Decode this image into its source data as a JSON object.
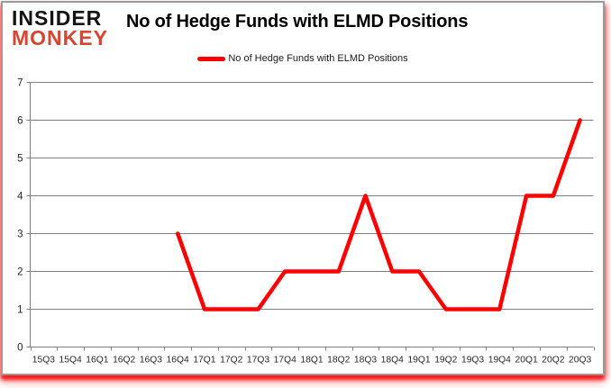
{
  "logo": {
    "line1": "INSIDER",
    "line2": "MONKEY",
    "line1_color": "#141414",
    "line2_color": "#d6452f"
  },
  "header": {
    "title": "No of Hedge Funds with ELMD Positions"
  },
  "legend": {
    "label": "No of Hedge Funds with ELMD Positions",
    "swatch_color": "#ff0000"
  },
  "chart_data": {
    "type": "line",
    "title": "No of Hedge Funds with ELMD Positions",
    "categories": [
      "15Q3",
      "15Q4",
      "16Q1",
      "16Q2",
      "16Q3",
      "16Q4",
      "17Q1",
      "17Q2",
      "17Q3",
      "17Q4",
      "18Q1",
      "18Q2",
      "18Q3",
      "18Q4",
      "19Q1",
      "19Q2",
      "19Q3",
      "19Q4",
      "20Q1",
      "20Q2",
      "20Q3"
    ],
    "series": [
      {
        "name": "No of Hedge Funds with ELMD Positions",
        "color": "#ff0000",
        "values": [
          null,
          null,
          null,
          null,
          null,
          3,
          1,
          1,
          1,
          2,
          2,
          2,
          4,
          2,
          2,
          1,
          1,
          1,
          4,
          4,
          6
        ]
      }
    ],
    "xlabel": "",
    "ylabel": "",
    "ylim": [
      0,
      7
    ],
    "yticks": [
      0,
      1,
      2,
      3,
      4,
      5,
      6,
      7
    ],
    "grid": true,
    "gridline_color": "#808080",
    "axis_color": "#808080",
    "tick_label_color": "#262626",
    "legend_position": "top"
  }
}
